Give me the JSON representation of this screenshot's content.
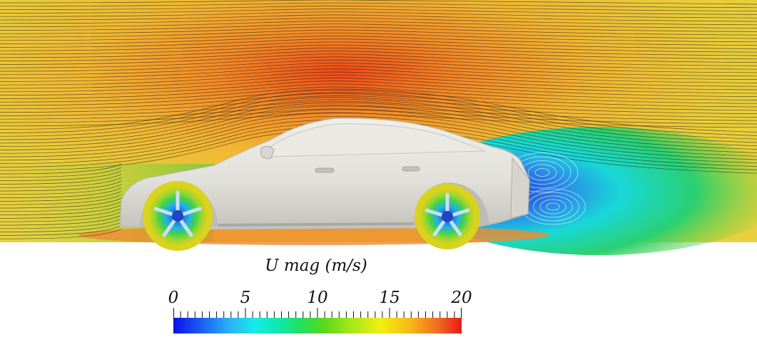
{
  "legend": {
    "title": "U mag (m/s)",
    "min": 0,
    "max": 20,
    "tick_labels": [
      "0",
      "5",
      "10",
      "15",
      "20"
    ],
    "tick_values": [
      0,
      5,
      10,
      15,
      20
    ]
  },
  "colors": {
    "low": "#0a10e8",
    "cyan": "#17eaea",
    "green": "#20e060",
    "yellow": "#f0f010",
    "orange": "#f06a20",
    "high": "#e81818",
    "car_body": "#e6e4de",
    "streamline": "#1a1a1a"
  },
  "scene": {
    "object": "car-icon",
    "visualization": "streamlines"
  }
}
